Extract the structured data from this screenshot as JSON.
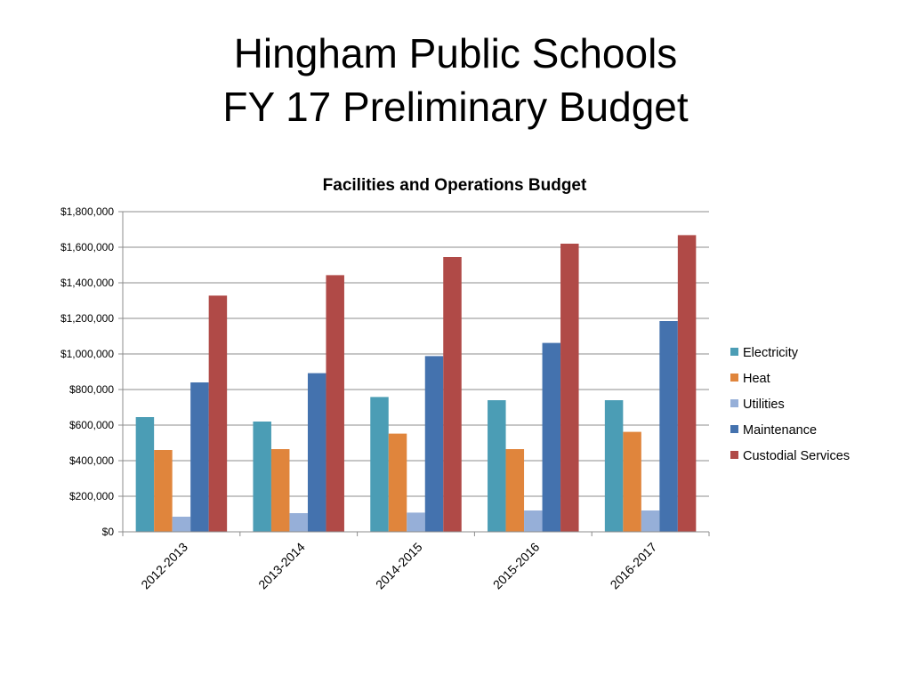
{
  "slide": {
    "title_line1": "Hingham Public Schools",
    "title_line2": "FY 17 Preliminary Budget"
  },
  "chart_data": {
    "type": "bar",
    "title": "Facilities and Operations Budget",
    "xlabel": "",
    "ylabel": "",
    "ylim": [
      0,
      1800000
    ],
    "yticks": [
      0,
      200000,
      400000,
      600000,
      800000,
      1000000,
      1200000,
      1400000,
      1600000,
      1800000
    ],
    "ytick_labels": [
      "$0",
      "$200,000",
      "$400,000",
      "$600,000",
      "$800,000",
      "$1,000,000",
      "$1,200,000",
      "$1,400,000",
      "$1,600,000",
      "$1,800,000"
    ],
    "grid": true,
    "legend_position": "right",
    "categories": [
      "2012-2013",
      "2013-2014",
      "2014-2015",
      "2015-2016",
      "2016-2017"
    ],
    "series": [
      {
        "name": "Electricity",
        "color": "#4B9DB5",
        "values": [
          645000,
          620000,
          758000,
          740000,
          740000
        ]
      },
      {
        "name": "Heat",
        "color": "#E0853C",
        "values": [
          460000,
          465000,
          552000,
          465000,
          562000
        ]
      },
      {
        "name": "Utilities",
        "color": "#96AFD8",
        "values": [
          85000,
          105000,
          108000,
          120000,
          120000
        ]
      },
      {
        "name": "Maintenance",
        "color": "#4472AE",
        "values": [
          840000,
          892000,
          988000,
          1062000,
          1185000
        ]
      },
      {
        "name": "Custodial Services",
        "color": "#B04A47",
        "values": [
          1328000,
          1443000,
          1545000,
          1620000,
          1668000
        ]
      }
    ]
  }
}
